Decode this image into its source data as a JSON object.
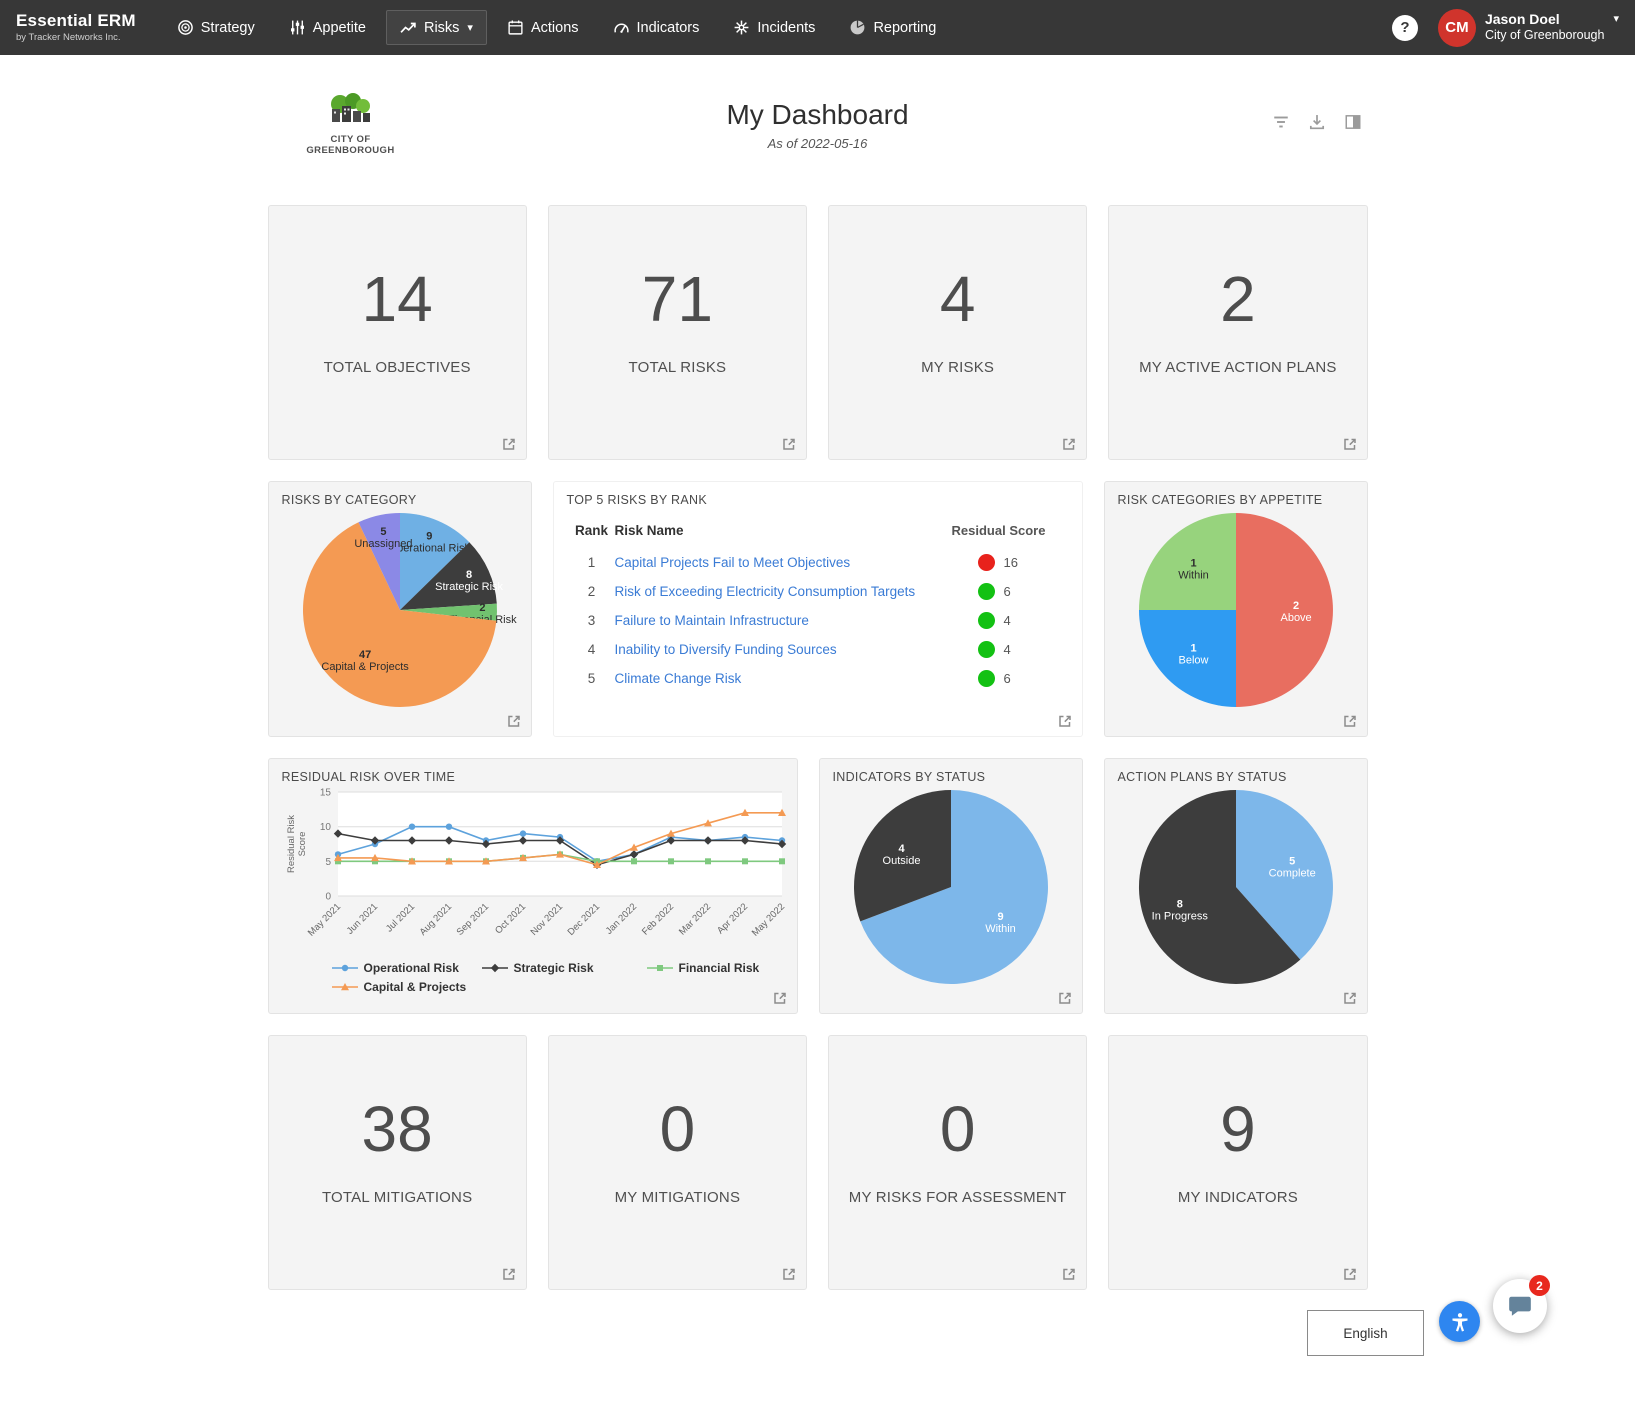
{
  "nav": {
    "brand": {
      "title": "Essential ERM",
      "subtitle": "by Tracker Networks Inc."
    },
    "items": [
      {
        "label": "Strategy",
        "icon": "target-icon",
        "active": false,
        "has_caret": false
      },
      {
        "label": "Appetite",
        "icon": "sliders-icon",
        "active": false,
        "has_caret": false
      },
      {
        "label": "Risks",
        "icon": "trend-icon",
        "active": true,
        "has_caret": true
      },
      {
        "label": "Actions",
        "icon": "calendar-icon",
        "active": false,
        "has_caret": false
      },
      {
        "label": "Indicators",
        "icon": "gauge-icon",
        "active": false,
        "has_caret": false
      },
      {
        "label": "Incidents",
        "icon": "burst-icon",
        "active": false,
        "has_caret": false
      },
      {
        "label": "Reporting",
        "icon": "pie-icon",
        "active": false,
        "has_caret": false
      }
    ],
    "help_text": "?",
    "user": {
      "initials": "CM",
      "name": "Jason Doel",
      "org": "City of Greenborough"
    }
  },
  "header": {
    "logo_text": "CITY OF GREENBOROUGH",
    "title": "My Dashboard",
    "subtitle": "As of 2022-05-16",
    "tools": [
      "filter-icon",
      "download-icon",
      "layout-icon"
    ]
  },
  "stats_top": [
    {
      "value": "14",
      "label": "TOTAL OBJECTIVES"
    },
    {
      "value": "71",
      "label": "TOTAL RISKS"
    },
    {
      "value": "4",
      "label": "MY RISKS"
    },
    {
      "value": "2",
      "label": "MY ACTIVE ACTION PLANS"
    }
  ],
  "stats_bottom": [
    {
      "value": "38",
      "label": "TOTAL MITIGATIONS"
    },
    {
      "value": "0",
      "label": "MY MITIGATIONS"
    },
    {
      "value": "0",
      "label": "MY RISKS FOR ASSESSMENT"
    },
    {
      "value": "9",
      "label": "MY INDICATORS"
    }
  ],
  "top5": {
    "title": "TOP 5 RISKS BY RANK",
    "columns": [
      "Rank",
      "Risk Name",
      "Residual Score"
    ],
    "rows": [
      {
        "rank": "1",
        "name": "Capital Projects Fail to Meet Objectives",
        "score": "16",
        "dot_color": "#e8221c"
      },
      {
        "rank": "2",
        "name": "Risk of Exceeding Electricity Consumption Targets",
        "score": "6",
        "dot_color": "#13c113"
      },
      {
        "rank": "3",
        "name": "Failure to Maintain Infrastructure",
        "score": "4",
        "dot_color": "#13c113"
      },
      {
        "rank": "4",
        "name": "Inability to Diversify Funding Sources",
        "score": "4",
        "dot_color": "#13c113"
      },
      {
        "rank": "5",
        "name": "Climate Change Risk",
        "score": "6",
        "dot_color": "#13c113"
      }
    ]
  },
  "chart_data": [
    {
      "id": "risksByCategory",
      "type": "pie",
      "title": "RISKS BY CATEGORY",
      "slices": [
        {
          "label": "Operational Risk",
          "value": 9,
          "color": "#6fb0e4",
          "text_color": "#2d2d2d"
        },
        {
          "label": "Strategic Risk",
          "value": 8,
          "color": "#3d3d3d",
          "text_color": "#ffffff"
        },
        {
          "label": "Financial Risk",
          "value": 2,
          "color": "#71c26f",
          "text_color": "#2d2d2d"
        },
        {
          "label": "Capital & Projects",
          "value": 47,
          "color": "#f49a53",
          "text_color": "#2d2d2d"
        },
        {
          "label": "Unassigned",
          "value": 5,
          "color": "#8b89e6",
          "text_color": "#2d2d2d"
        }
      ]
    },
    {
      "id": "appetite",
      "type": "pie",
      "title": "RISK CATEGORIES BY APPETITE",
      "slices": [
        {
          "label": "Above",
          "value": 2,
          "color": "#e86e60",
          "text_color": "#ffffff"
        },
        {
          "label": "Below",
          "value": 1,
          "color": "#2f9bf2",
          "text_color": "#ffffff"
        },
        {
          "label": "Within",
          "value": 1,
          "color": "#97d37d",
          "text_color": "#2d2d2d"
        }
      ]
    },
    {
      "id": "indicators",
      "type": "pie",
      "title": "INDICATORS BY STATUS",
      "slices": [
        {
          "label": "Within",
          "value": 9,
          "color": "#7db7ea",
          "text_color": "#ffffff"
        },
        {
          "label": "Outside",
          "value": 4,
          "color": "#3d3d3d",
          "text_color": "#ffffff"
        }
      ]
    },
    {
      "id": "actionPlans",
      "type": "pie",
      "title": "ACTION PLANS BY STATUS",
      "slices": [
        {
          "label": "Complete",
          "value": 5,
          "color": "#7db7ea",
          "text_color": "#ffffff"
        },
        {
          "label": "In Progress",
          "value": 8,
          "color": "#3d3d3d",
          "text_color": "#ffffff"
        }
      ]
    },
    {
      "id": "residual",
      "type": "line",
      "title": "RESIDUAL RISK OVER TIME",
      "ylabel": "Residual Risk Score",
      "ylim": [
        0,
        15
      ],
      "yticks": [
        0,
        5,
        10,
        15
      ],
      "x": [
        "May 2021",
        "Jun 2021",
        "Jul 2021",
        "Aug 2021",
        "Sep 2021",
        "Oct 2021",
        "Nov 2021",
        "Dec 2021",
        "Jan 2022",
        "Feb 2022",
        "Mar 2022",
        "Apr 2022",
        "May 2022"
      ],
      "series": [
        {
          "name": "Operational Risk",
          "color": "#5da2dc",
          "marker": "circle",
          "values": [
            6,
            7.5,
            10,
            10,
            8,
            9,
            8.5,
            5,
            6,
            8.5,
            8,
            8.5,
            8
          ]
        },
        {
          "name": "Strategic Risk",
          "color": "#3d3d3d",
          "marker": "diamond",
          "values": [
            9,
            8,
            8,
            8,
            7.5,
            8,
            8,
            4.5,
            6,
            8,
            8,
            8,
            7.5
          ]
        },
        {
          "name": "Financial Risk",
          "color": "#7fc97f",
          "marker": "square",
          "values": [
            5,
            5,
            5,
            5,
            5,
            5.5,
            6,
            5,
            5,
            5,
            5,
            5,
            5
          ]
        },
        {
          "name": "Capital & Projects",
          "color": "#f49a53",
          "marker": "triangle",
          "values": [
            5.5,
            5.5,
            5,
            5,
            5,
            5.5,
            6,
            4.5,
            7,
            9,
            10.5,
            12,
            12
          ]
        }
      ],
      "legend_position": "bottom",
      "grid": true
    }
  ],
  "footer": {
    "language_label": "English",
    "chat_badge": "2"
  }
}
